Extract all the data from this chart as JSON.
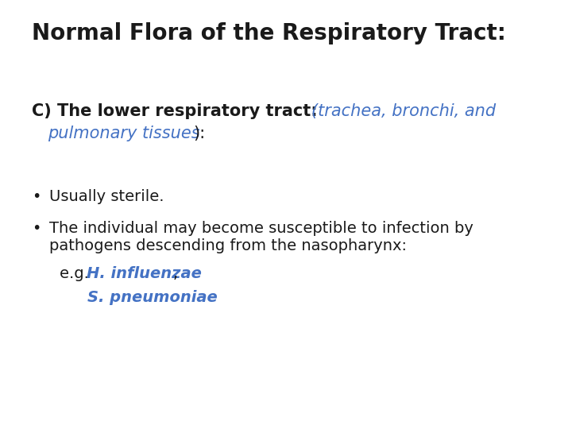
{
  "background_color": "#ffffff",
  "title": "Normal Flora of the Respiratory Tract:",
  "title_fontsize": 20,
  "subtitle_black": "C) The lower respiratory tract:",
  "subtitle_blue1": "(trachea, bronchi, and",
  "subtitle_blue2": "pulmonary tissues",
  "subtitle_black2": "):",
  "subtitle_fontsize": 15,
  "bullet_fontsize": 14,
  "bullet1": "Usually sterile.",
  "bullet2_line1": "The individual may become susceptible to infection by",
  "bullet2_line2": "pathogens descending from the nasopharynx:",
  "eg_prefix": "e.g. ",
  "eg_italic_blue": "H. influenzae",
  "eg_suffix": ",",
  "sp_italic_blue": "S. pneumoniae",
  "black_color": "#1a1a1a",
  "blue_color": "#4472C4",
  "bullet_char": "•"
}
